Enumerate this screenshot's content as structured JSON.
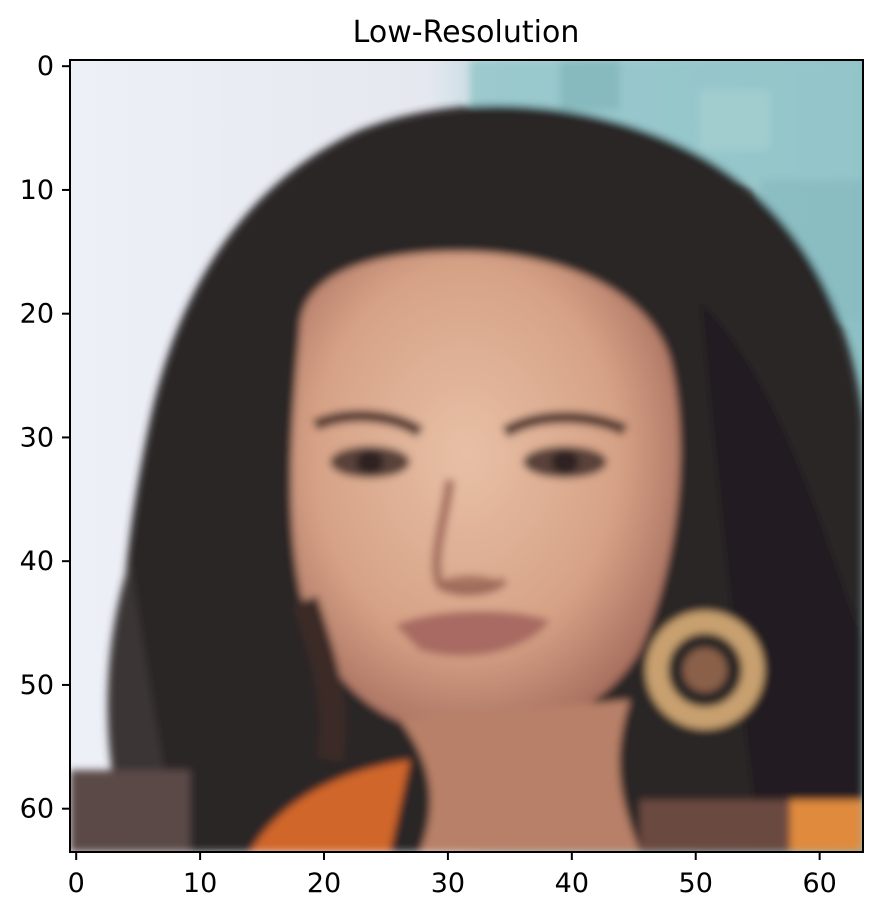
{
  "figure": {
    "title": "Low-Resolution"
  },
  "chart_data": {
    "type": "image",
    "title": "Low-Resolution",
    "xlabel": "",
    "ylabel": "",
    "image_size": [
      64,
      64
    ],
    "xlim": [
      -0.5,
      63.5
    ],
    "ylim": [
      63.5,
      -0.5
    ],
    "x_ticks": [
      0,
      10,
      20,
      30,
      40,
      50,
      60
    ],
    "y_ticks": [
      0,
      10,
      20,
      30,
      40,
      50,
      60
    ],
    "grid": false,
    "colors": {
      "background_light": "#eef0f8",
      "background_teal": "#8cc4c8",
      "hair_dark": "#2a2426",
      "skin": "#d9a88c",
      "skin_shadow": "#b07a62",
      "lips": "#a86a60",
      "earring_gold": "#c8a070",
      "shirt_orange": "#d46a28",
      "axis": "#000000"
    }
  }
}
